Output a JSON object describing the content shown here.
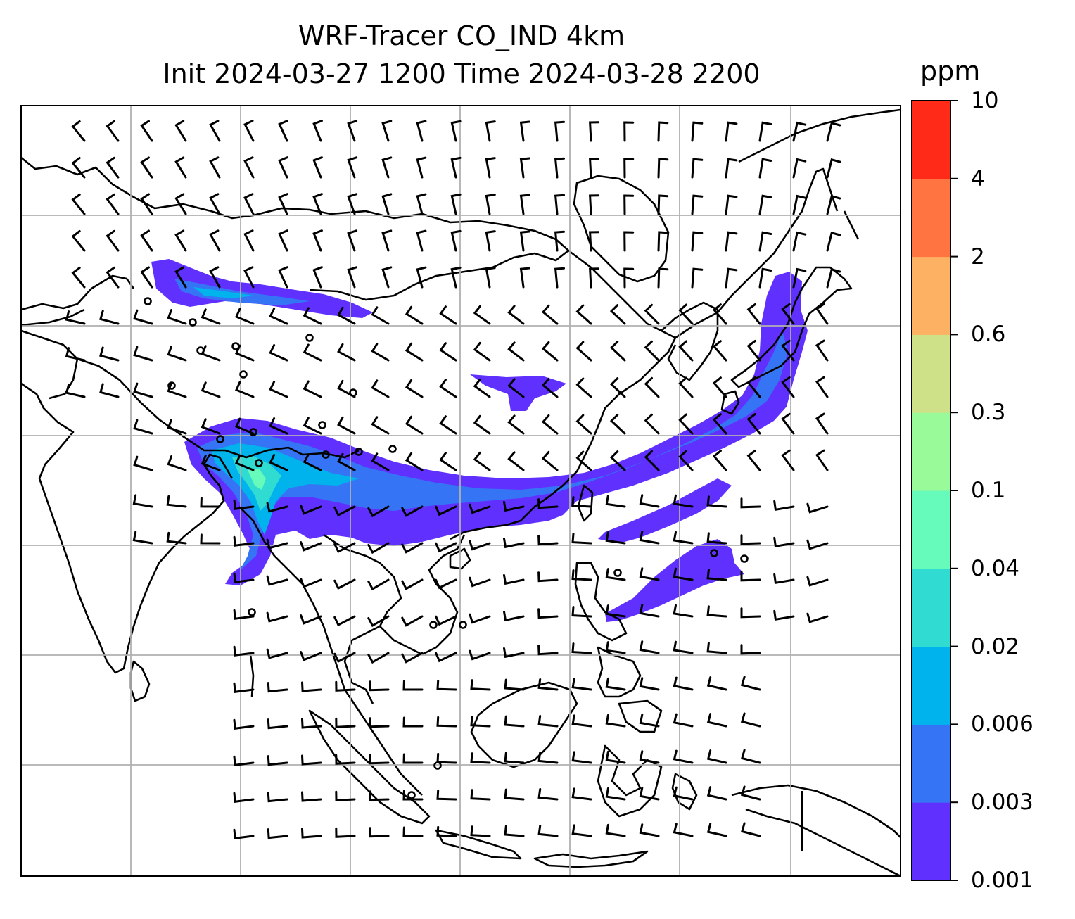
{
  "title": {
    "line1": "WRF-Tracer CO_IND 4km",
    "line2": "Init 2024-03-27 1200 Time 2024-03-28 2200"
  },
  "colorbar": {
    "unit": "ppm",
    "levels": [
      "0.001",
      "0.003",
      "0.006",
      "0.02",
      "0.04",
      "0.1",
      "0.3",
      "0.6",
      "2",
      "4",
      "10"
    ],
    "colors": [
      "#6030ff",
      "#3575f5",
      "#00b3ec",
      "#30dcd2",
      "#66fbbb",
      "#99fa99",
      "#cfe188",
      "#fdb162",
      "#ff7440",
      "#ff2a18"
    ]
  },
  "map": {
    "land_line_color": "#000000",
    "grid_color": "#b0b0b0",
    "barb_color": "#000000"
  }
}
